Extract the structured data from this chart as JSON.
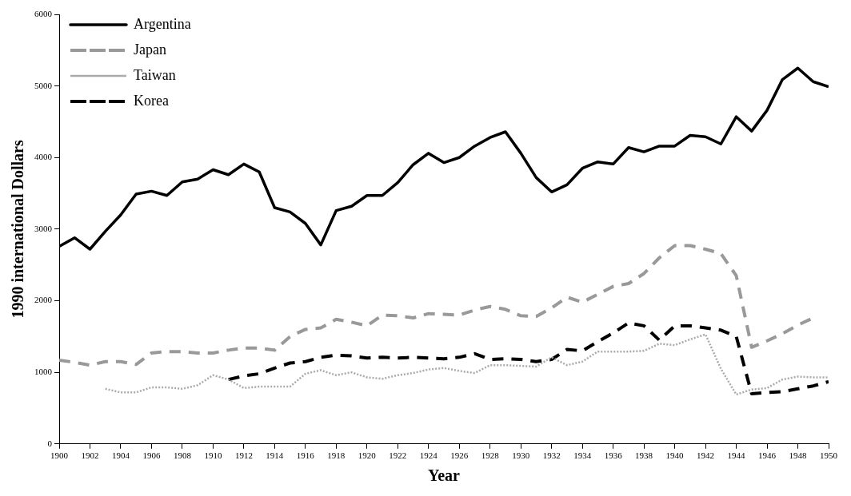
{
  "chart_data": {
    "type": "line",
    "xlabel": "Year",
    "ylabel": "1990 international Dollars",
    "x": [
      1900,
      1901,
      1902,
      1903,
      1904,
      1905,
      1906,
      1907,
      1908,
      1909,
      1910,
      1911,
      1912,
      1913,
      1914,
      1915,
      1916,
      1917,
      1918,
      1919,
      1920,
      1921,
      1922,
      1923,
      1924,
      1925,
      1926,
      1927,
      1928,
      1929,
      1930,
      1931,
      1932,
      1933,
      1934,
      1935,
      1936,
      1937,
      1938,
      1939,
      1940,
      1941,
      1942,
      1943,
      1944,
      1945,
      1946,
      1947,
      1948,
      1949,
      1950
    ],
    "series": [
      {
        "name": "Argentina",
        "color": "#000000",
        "line_style": "solid",
        "values": [
          2760,
          2880,
          2720,
          2970,
          3200,
          3490,
          3530,
          3470,
          3660,
          3700,
          3830,
          3760,
          3910,
          3800,
          3300,
          3240,
          3080,
          2780,
          3260,
          3320,
          3470,
          3470,
          3650,
          3900,
          4060,
          3930,
          4000,
          4160,
          4280,
          4360,
          4060,
          3720,
          3520,
          3620,
          3850,
          3940,
          3910,
          4140,
          4080,
          4160,
          4160,
          4310,
          4290,
          4190,
          4570,
          4370,
          4660,
          5090,
          5250,
          5060,
          4990
        ]
      },
      {
        "name": "Japan",
        "color": "#999999",
        "line_style": "dashed",
        "values": [
          1170,
          1140,
          1100,
          1150,
          1150,
          1110,
          1270,
          1290,
          1290,
          1270,
          1270,
          1310,
          1340,
          1340,
          1310,
          1500,
          1600,
          1620,
          1740,
          1700,
          1650,
          1800,
          1790,
          1760,
          1820,
          1810,
          1800,
          1870,
          1920,
          1880,
          1790,
          1780,
          1900,
          2050,
          1980,
          2090,
          2200,
          2240,
          2380,
          2600,
          2770,
          2770,
          2720,
          2660,
          2350,
          1350,
          1440,
          1540,
          1660,
          1760,
          null
        ]
      },
      {
        "name": "Taiwan",
        "color": "#aaaaaa",
        "line_style": "dotted",
        "values": [
          null,
          null,
          null,
          770,
          720,
          720,
          790,
          790,
          770,
          820,
          960,
          900,
          780,
          800,
          800,
          800,
          980,
          1030,
          960,
          1000,
          930,
          910,
          960,
          990,
          1040,
          1060,
          1020,
          990,
          1100,
          1100,
          1090,
          1080,
          1210,
          1100,
          1150,
          1290,
          1290,
          1290,
          1300,
          1400,
          1380,
          1460,
          1530,
          1050,
          690,
          760,
          780,
          900,
          940,
          930,
          930
        ]
      },
      {
        "name": "Korea",
        "color": "#000000",
        "line_style": "dashed",
        "values": [
          null,
          null,
          null,
          null,
          null,
          null,
          null,
          null,
          null,
          null,
          null,
          900,
          950,
          980,
          1060,
          1130,
          1150,
          1210,
          1240,
          1230,
          1200,
          1210,
          1200,
          1210,
          1200,
          1190,
          1210,
          1260,
          1180,
          1190,
          1180,
          1150,
          1180,
          1320,
          1300,
          1430,
          1550,
          1690,
          1650,
          1450,
          1650,
          1650,
          1620,
          1590,
          1500,
          700,
          720,
          730,
          770,
          810,
          870
        ]
      }
    ],
    "xlim": [
      1900,
      1950
    ],
    "xticks": [
      1900,
      1902,
      1904,
      1906,
      1908,
      1910,
      1912,
      1914,
      1916,
      1918,
      1920,
      1922,
      1924,
      1926,
      1928,
      1930,
      1932,
      1934,
      1936,
      1938,
      1940,
      1942,
      1944,
      1946,
      1948,
      1950
    ],
    "ylim": [
      0,
      6000
    ],
    "yticks": [
      0,
      1000,
      2000,
      3000,
      4000,
      5000,
      6000
    ],
    "grid": false,
    "legend": "top left",
    "marker": "none"
  }
}
